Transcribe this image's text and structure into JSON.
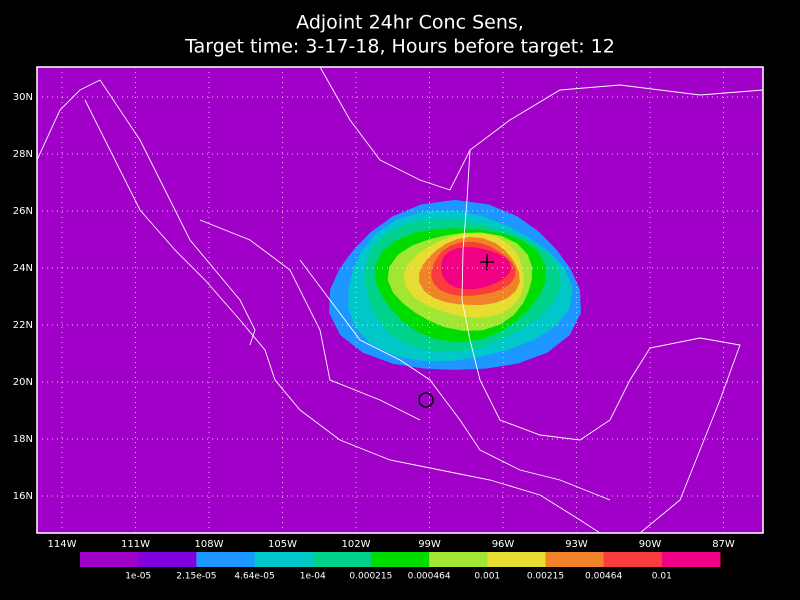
{
  "title": [
    "Adjoint 24hr Conc Sens,",
    "Target time: 3-17-18, Hours before target: 12"
  ],
  "lat_labels": [
    "30N",
    "28N",
    "26N",
    "24N",
    "22N",
    "20N",
    "18N",
    "16N"
  ],
  "lon_labels": [
    "114W",
    "111W",
    "108W",
    "105W",
    "102W",
    "99W",
    "96W",
    "93W",
    "90W",
    "87W"
  ],
  "colorbar": {
    "colors": [
      "#a000c8",
      "#8200dc",
      "#1e96ff",
      "#00c8c8",
      "#00d28c",
      "#00dc00",
      "#a0e632",
      "#e6dc32",
      "#f08228",
      "#fa3c3c",
      "#f00082"
    ],
    "labels": [
      "1e-05",
      "2.15e-05",
      "4.64e-05",
      "1e-04",
      "0.000215",
      "0.000464",
      "0.001",
      "0.00215",
      "0.00464",
      "0.01"
    ]
  }
}
